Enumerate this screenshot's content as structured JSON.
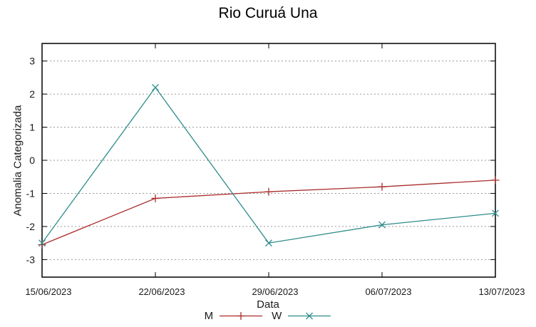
{
  "chart_data": {
    "type": "line",
    "title": "Rio Curuá Una",
    "xlabel": "Data",
    "ylabel": "Anomalia Categorizada",
    "categories": [
      "15/06/2023",
      "22/06/2023",
      "29/06/2023",
      "06/07/2023",
      "13/07/2023"
    ],
    "series": [
      {
        "name": "M",
        "marker": "plus",
        "color": "#aa2d2d",
        "values": [
          -2.55,
          -1.15,
          -0.95,
          -0.8,
          -0.6
        ]
      },
      {
        "name": "W",
        "marker": "cross",
        "color": "#2f8c8c",
        "values": [
          -2.5,
          2.2,
          -2.5,
          -1.95,
          -1.6
        ]
      }
    ],
    "yticks": [
      3,
      2,
      1,
      0,
      -1,
      -2,
      -3
    ],
    "ylim": [
      -3.53,
      3.53
    ],
    "grid": {
      "horizontal": true,
      "vertical": false,
      "style": "dotted",
      "color": "#999999"
    },
    "legend_position": "bottom-center",
    "axis_color": "#000000",
    "text_color": "#1a1a1a",
    "background": "#ffffff"
  }
}
